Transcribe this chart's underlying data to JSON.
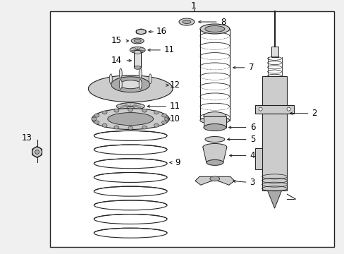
{
  "bg": "#f0f0f0",
  "white": "#ffffff",
  "lc": "#222222",
  "gray1": "#cccccc",
  "gray2": "#aaaaaa",
  "gray3": "#dddddd",
  "figsize": [
    4.89,
    3.6
  ],
  "dpi": 100
}
